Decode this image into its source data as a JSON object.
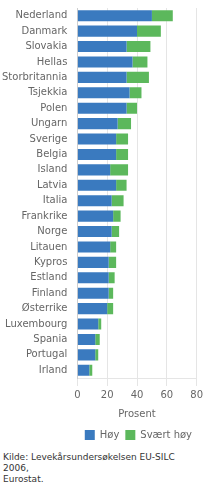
{
  "chart_data": {
    "type": "bar",
    "orientation": "horizontal",
    "stacked": true,
    "categories": [
      "Nederland",
      "Danmark",
      "Slovakia",
      "Hellas",
      "Storbritannia",
      "Tsjekkia",
      "Polen",
      "Ungarn",
      "Sverige",
      "Belgia",
      "Island",
      "Latvia",
      "Italia",
      "Frankrike",
      "Norge",
      "Litauen",
      "Kypros",
      "Estland",
      "Finland",
      "Østerrike",
      "Luxembourg",
      "Spania",
      "Portugal",
      "Irland"
    ],
    "series": [
      {
        "name": "Høy",
        "color": "#3a7abf",
        "values": [
          50,
          40,
          33,
          37,
          33,
          35,
          33,
          27,
          26,
          26,
          22,
          26,
          23,
          24,
          23,
          22,
          21,
          21,
          21,
          20,
          14,
          12,
          12,
          8
        ]
      },
      {
        "name": "Svært høy",
        "color": "#5cb85c",
        "values": [
          14,
          16,
          16,
          10,
          15,
          8,
          7,
          9,
          8,
          8,
          12,
          7,
          8,
          5,
          5,
          4,
          5,
          4,
          3,
          4,
          2,
          3,
          2,
          2
        ]
      }
    ],
    "x_label": "Prosent",
    "xlim": [
      0,
      80
    ],
    "xticks": [
      0,
      20,
      40,
      60,
      80
    ],
    "grid": true,
    "legend": "lower right",
    "annotations": [
      "Kilde: Levekårsundersøkelsen EU-SILC 2006,\nEurostat."
    ]
  }
}
